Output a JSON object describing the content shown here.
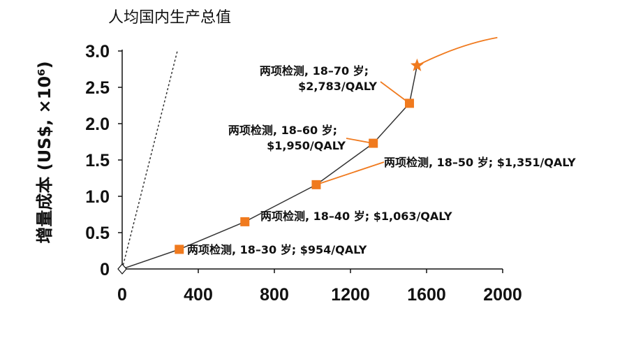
{
  "chart_data": {
    "type": "line",
    "title": "人均国内生产总值",
    "ylabel": "增量成本 (US$, ×10⁶)",
    "xlim": [
      0,
      2000
    ],
    "ylim": [
      0,
      3.0
    ],
    "x_ticks": [
      "0",
      "400",
      "800",
      "1200",
      "1600",
      "2000"
    ],
    "y_ticks": [
      "0",
      "0.5",
      "1.0",
      "1.5",
      "2.0",
      "2.5",
      "3.0"
    ],
    "grid": false,
    "series": [
      {
        "points": [
          {
            "x": 0,
            "y": 0,
            "marker": "diamond"
          },
          {
            "x": 300,
            "y": 0.27,
            "marker": "square"
          },
          {
            "x": 645,
            "y": 0.65,
            "marker": "square"
          },
          {
            "x": 1020,
            "y": 1.16,
            "marker": "square"
          },
          {
            "x": 1320,
            "y": 1.73,
            "marker": "square"
          },
          {
            "x": 1510,
            "y": 2.28,
            "marker": "square"
          },
          {
            "x": 1550,
            "y": 2.8,
            "marker": "star"
          }
        ]
      }
    ],
    "reference_line": {
      "style": "dotted",
      "from": {
        "x": 0,
        "y": 0
      },
      "to": {
        "x": 290,
        "y": 3.0
      }
    },
    "annotations": [
      {
        "lines": [
          "两项检测, 18–30 岁;  $954/QALY"
        ],
        "point": 1
      },
      {
        "lines": [
          "两项检测, 18–40 岁;  $1,063/QALY"
        ],
        "point": 2
      },
      {
        "lines": [
          "两项检测, 18–50 岁;  $1,351/QALY"
        ],
        "point": 3
      },
      {
        "lines": [
          "两项检测, 18–60 岁;",
          "$1,950/QALY"
        ],
        "point": 4
      },
      {
        "lines": [
          "两项检测, 18–70 岁;",
          "$2,783/QALY"
        ],
        "point": 5
      }
    ],
    "colors": {
      "marker": "#f07a1e",
      "line": "#333333",
      "ref_line": "#333333",
      "axis": "#111111"
    }
  }
}
